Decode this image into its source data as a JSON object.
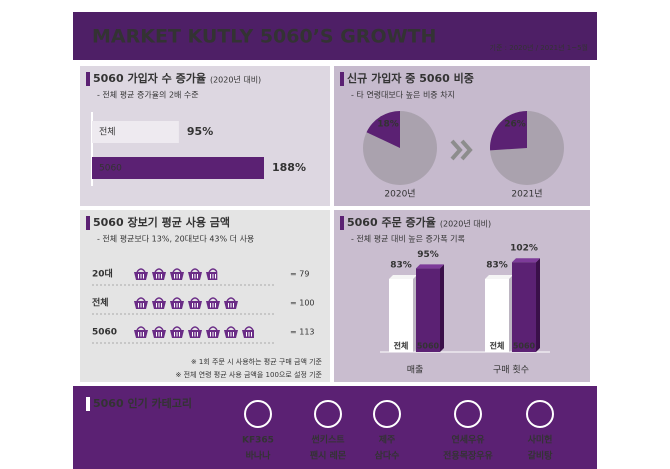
{
  "header": {
    "title": "MARKET KUTLY 5060’S GROWTH",
    "note": "기준 : 2020년 / 2021년 1~5월"
  },
  "signup_growth": {
    "title": "5060 가입자 수 증가율",
    "title_note": "(2020년 대비)",
    "subtitle": "- 전체 평균 증가율의 2배 수준",
    "categories": [
      "전체",
      "5060"
    ],
    "values": [
      95,
      188
    ],
    "value_labels": [
      "95%",
      "188%"
    ]
  },
  "new_share": {
    "title": "신규 가입자 중 5060 비중",
    "subtitle": "- 타 연령대보다 높은 비중 차지",
    "categories": [
      "2020년",
      "2021년"
    ],
    "values": [
      18,
      26
    ],
    "value_labels": [
      "18%",
      "26%"
    ]
  },
  "basket": {
    "title": "5060 장보기 평균 사용 금액",
    "subtitle": "- 전체 평균보다 13%, 20대보다 43% 더 사용",
    "categories": [
      "20대",
      "전체",
      "5060"
    ],
    "values": [
      79,
      100,
      113
    ],
    "value_labels": [
      "= 79",
      "= 100",
      "= 113"
    ],
    "notes": [
      "※ 1회 주문 시 사용하는 평균 구매 금액 기준",
      "※ 전체 연령 평균 사용 금액을 100으로 설정 기준"
    ]
  },
  "order_growth": {
    "title": "5060 주문 증가율",
    "title_note": "(2020년 대비)",
    "subtitle": "- 전체 평균 대비 높은 증가폭 기록",
    "groups": [
      "매출",
      "구매 횟수"
    ],
    "series": [
      {
        "name": "전체",
        "values": [
          83,
          83
        ],
        "value_labels": [
          "83%",
          "83%"
        ]
      },
      {
        "name": "5060",
        "values": [
          95,
          102
        ],
        "value_labels": [
          "95%",
          "102%"
        ]
      }
    ]
  },
  "popular": {
    "title": "5060 인기 카테고리",
    "items": [
      {
        "brand": "KF365",
        "product": "바나나"
      },
      {
        "brand": "썬키스트",
        "product": "팬시 레몬"
      },
      {
        "brand": "제주",
        "product": "삼다수"
      },
      {
        "brand": "연세우유",
        "product": "전용목장우유"
      },
      {
        "brand": "사미헌",
        "product": "갈비탕"
      }
    ]
  }
}
